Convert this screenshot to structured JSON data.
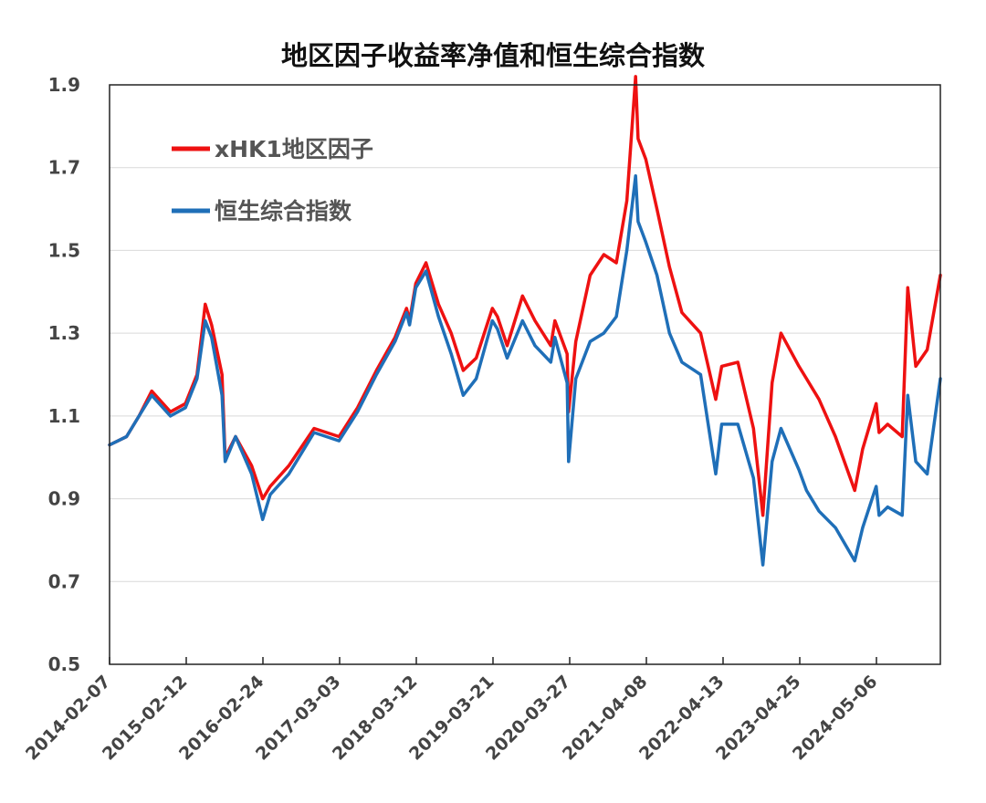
{
  "chart_data": {
    "type": "line",
    "title": "地区因子收益率净值和恒生综合指数",
    "xlabel": "",
    "ylabel": "",
    "ylim": [
      0.5,
      1.9
    ],
    "y_ticks": [
      "0.5",
      "0.7",
      "0.9",
      "1.1",
      "1.3",
      "1.5",
      "1.7",
      "1.9"
    ],
    "x_tick_labels": [
      "2014-02-07",
      "2015-02-12",
      "2016-02-24",
      "2017-03-03",
      "2018-03-12",
      "2019-03-21",
      "2020-03-27",
      "2021-04-08",
      "2022-04-13",
      "2023-04-25",
      "2024-05-06"
    ],
    "grid": "horizontal",
    "legend_position": "top-left",
    "x_dates": [
      "2014-02-07",
      "2014-05-01",
      "2014-07-01",
      "2014-09-01",
      "2014-12-01",
      "2015-02-12",
      "2015-04-10",
      "2015-05-20",
      "2015-06-20",
      "2015-08-10",
      "2015-08-25",
      "2015-10-15",
      "2016-01-01",
      "2016-02-24",
      "2016-04-01",
      "2016-07-01",
      "2016-11-01",
      "2017-03-03",
      "2017-06-01",
      "2017-09-01",
      "2017-12-01",
      "2018-01-26",
      "2018-02-10",
      "2018-03-12",
      "2018-05-01",
      "2018-07-01",
      "2018-09-01",
      "2018-10-30",
      "2019-01-01",
      "2019-03-21",
      "2019-04-15",
      "2019-06-01",
      "2019-08-15",
      "2019-10-15",
      "2019-12-31",
      "2020-01-20",
      "2020-03-20",
      "2020-03-27",
      "2020-05-01",
      "2020-07-10",
      "2020-09-15",
      "2020-11-15",
      "2021-01-05",
      "2021-02-17",
      "2021-03-01",
      "2021-04-08",
      "2021-06-01",
      "2021-08-01",
      "2021-10-01",
      "2021-12-31",
      "2022-03-15",
      "2022-04-13",
      "2022-07-01",
      "2022-09-15",
      "2022-10-31",
      "2022-12-15",
      "2023-01-27",
      "2023-04-25",
      "2023-06-01",
      "2023-08-01",
      "2023-10-20",
      "2024-01-22",
      "2024-03-01",
      "2024-05-06",
      "2024-05-20",
      "2024-07-01",
      "2024-09-10",
      "2024-10-07",
      "2024-11-15",
      "2025-01-10",
      "2025-03-15"
    ],
    "series": [
      {
        "name": "xHK1地区因子",
        "color": "#ee1111",
        "values": [
          1.03,
          1.05,
          1.1,
          1.16,
          1.11,
          1.13,
          1.2,
          1.37,
          1.32,
          1.2,
          1.0,
          1.05,
          0.98,
          0.9,
          0.93,
          0.98,
          1.07,
          1.05,
          1.12,
          1.21,
          1.29,
          1.36,
          1.33,
          1.42,
          1.47,
          1.37,
          1.3,
          1.21,
          1.24,
          1.36,
          1.34,
          1.27,
          1.39,
          1.33,
          1.27,
          1.33,
          1.25,
          1.11,
          1.28,
          1.44,
          1.49,
          1.47,
          1.62,
          1.92,
          1.77,
          1.72,
          1.6,
          1.46,
          1.35,
          1.3,
          1.14,
          1.22,
          1.23,
          1.07,
          0.86,
          1.18,
          1.3,
          1.22,
          1.19,
          1.14,
          1.05,
          0.92,
          1.02,
          1.13,
          1.06,
          1.08,
          1.05,
          1.41,
          1.22,
          1.26,
          1.44
        ]
      },
      {
        "name": "恒生综合指数",
        "color": "#1f6fb8",
        "values": [
          1.03,
          1.05,
          1.1,
          1.15,
          1.1,
          1.12,
          1.19,
          1.33,
          1.29,
          1.15,
          0.99,
          1.05,
          0.96,
          0.85,
          0.91,
          0.96,
          1.06,
          1.04,
          1.11,
          1.2,
          1.28,
          1.35,
          1.32,
          1.41,
          1.45,
          1.34,
          1.25,
          1.15,
          1.19,
          1.33,
          1.31,
          1.24,
          1.33,
          1.27,
          1.23,
          1.29,
          1.18,
          0.99,
          1.19,
          1.28,
          1.3,
          1.34,
          1.5,
          1.68,
          1.57,
          1.52,
          1.44,
          1.3,
          1.23,
          1.2,
          0.96,
          1.08,
          1.08,
          0.95,
          0.74,
          0.99,
          1.07,
          0.97,
          0.92,
          0.87,
          0.83,
          0.75,
          0.83,
          0.93,
          0.86,
          0.88,
          0.86,
          1.15,
          0.99,
          0.96,
          1.19
        ]
      }
    ]
  }
}
